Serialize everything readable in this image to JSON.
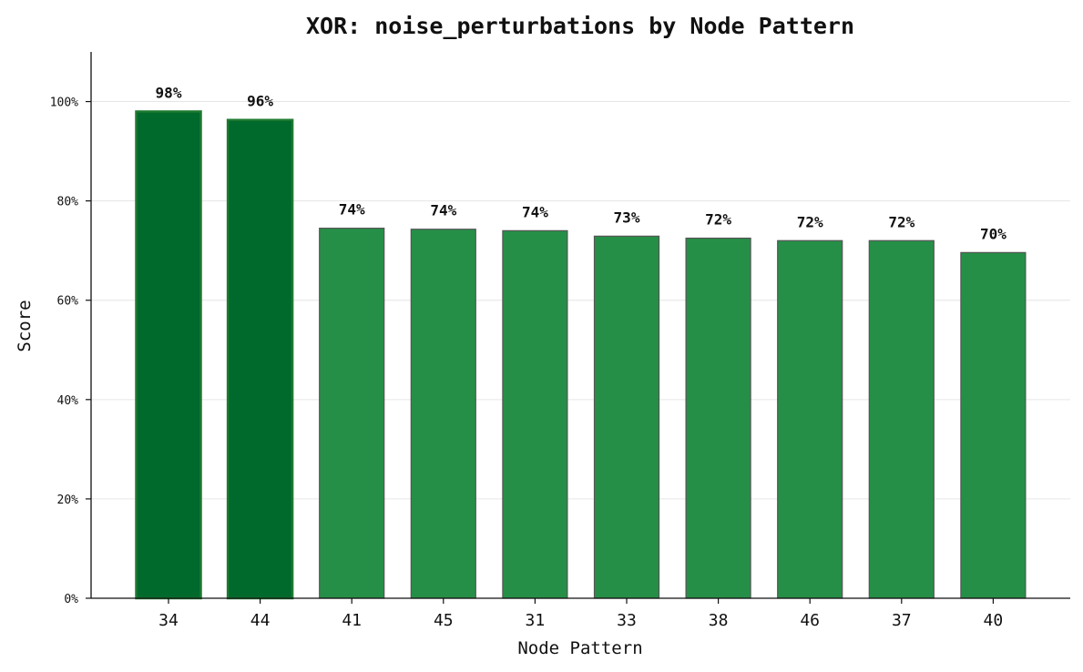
{
  "chart_data": {
    "type": "bar",
    "title": "XOR: noise_perturbations by Node Pattern",
    "xlabel": "Node Pattern",
    "ylabel": "Score",
    "categories": [
      "34",
      "44",
      "41",
      "45",
      "31",
      "33",
      "38",
      "46",
      "37",
      "40"
    ],
    "values": [
      98,
      96,
      74,
      74,
      74,
      73,
      72,
      72,
      72,
      70
    ],
    "exact_values": [
      98.0,
      96.3,
      74.5,
      74.3,
      74.0,
      72.9,
      72.5,
      72.0,
      72.0,
      69.6
    ],
    "data_labels": [
      "98%",
      "96%",
      "74%",
      "74%",
      "74%",
      "73%",
      "72%",
      "72%",
      "72%",
      "70%"
    ],
    "ylim": [
      0,
      110
    ],
    "yticks": [
      0,
      20,
      40,
      60,
      80,
      100
    ],
    "ytick_labels": [
      "0%",
      "20%",
      "40%",
      "60%",
      "80%",
      "100%"
    ],
    "grid": "horizontal",
    "colors": {
      "highlight": "#00692c",
      "highlight_edge": "#1e7a30",
      "normal": "#268f47",
      "normal_edge": "#555555"
    },
    "highlight_indices": [
      0,
      1
    ]
  }
}
